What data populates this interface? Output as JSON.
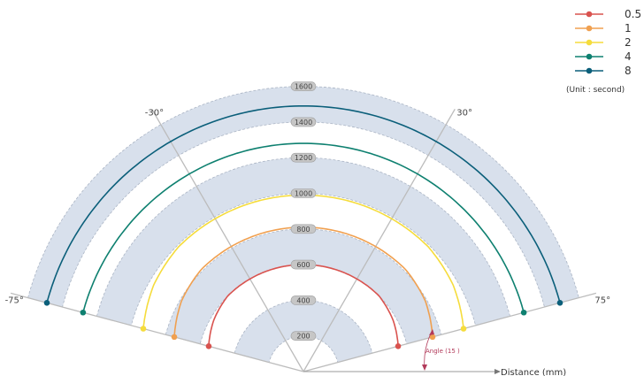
{
  "chart_data": {
    "type": "line",
    "coordinate_system": "polar",
    "angle_range_deg": [
      -75,
      75
    ],
    "radial_range": [
      0,
      1600
    ],
    "radial_ticks": [
      200,
      400,
      600,
      800,
      1000,
      1200,
      1400,
      1600
    ],
    "angle_labels": [
      {
        "angle": -75,
        "label": "-75°"
      },
      {
        "angle": -30,
        "label": "-30°"
      },
      {
        "angle": 30,
        "label": "30°"
      },
      {
        "angle": 75,
        "label": "75°"
      }
    ],
    "radial_axis_title": "Distance (mm)",
    "annotation": "Angle (15 )",
    "unit_note": "(Unit : second)",
    "series": [
      {
        "name": "0.5",
        "color": "#d9534f",
        "r": [
          600,
          600,
          600,
          600,
          600,
          600,
          600,
          580,
          550
        ]
      },
      {
        "name": "1",
        "color": "#f0a050",
        "r": [
          810,
          810,
          810,
          810,
          810,
          810,
          810,
          790,
          750
        ]
      },
      {
        "name": "2",
        "color": "#f5dc3c",
        "r": [
          990,
          990,
          990,
          990,
          990,
          990,
          990,
          970,
          930
        ]
      },
      {
        "name": "4",
        "color": "#0e8070",
        "r": [
          1280,
          1280,
          1280,
          1280,
          1280,
          1280,
          1280,
          1280,
          1280
        ]
      },
      {
        "name": "8",
        "color": "#0b5f7a",
        "r": [
          1490,
          1490,
          1490,
          1490,
          1490,
          1490,
          1490,
          1490,
          1490
        ]
      }
    ],
    "series_angles": [
      -75,
      -60,
      -45,
      -30,
      0,
      30,
      45,
      60,
      75
    ],
    "series_x_side": "symmetric",
    "grid": true,
    "legend_position": "top-right"
  }
}
